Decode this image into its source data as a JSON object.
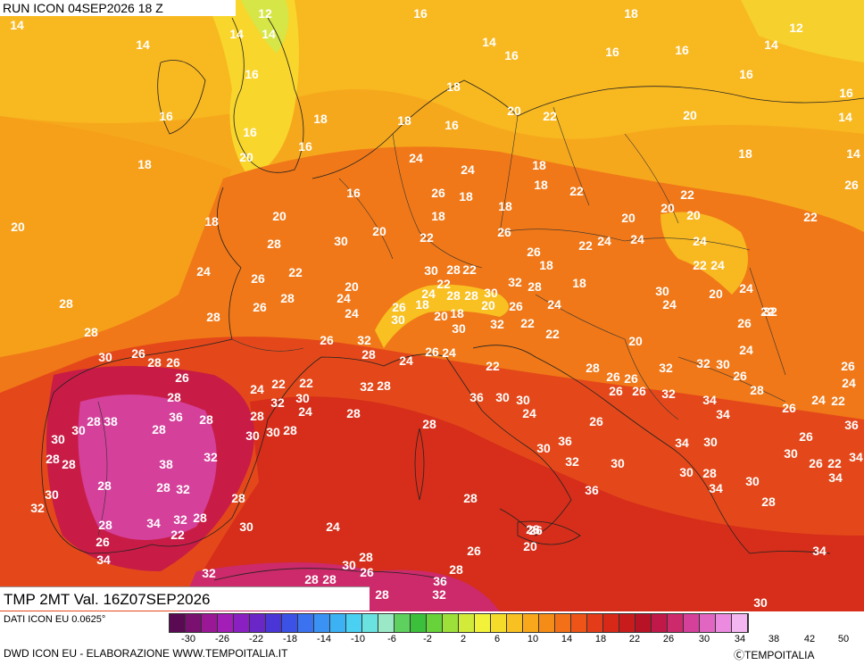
{
  "header": {
    "run": "RUN ICON 04SEP2026 18 Z"
  },
  "validity": {
    "label": "TMP 2MT Val. 16Z07SEP2026"
  },
  "footer": {
    "source": "DATI ICON EU 0.0625°",
    "credit": "DWD ICON EU - ELABORAZIONE WWW.TEMPOITALIA.IT",
    "copyright": "ⒸTEMPOITALIA"
  },
  "scale": {
    "ticks": [
      "-30",
      "-26",
      "-22",
      "-18",
      "-14",
      "-10",
      "-6",
      "-2",
      "2",
      "6",
      "10",
      "14",
      "18",
      "22",
      "26",
      "30",
      "34",
      "38",
      "42",
      "50"
    ],
    "colors": [
      "#5a0a52",
      "#7a1070",
      "#9a1896",
      "#a21eb6",
      "#8a20c2",
      "#6a26c6",
      "#4a36d6",
      "#3c52e6",
      "#3a72f0",
      "#3a92f4",
      "#3cb2f4",
      "#4ad0f2",
      "#6ae2e0",
      "#9ae8c6",
      "#5ed05e",
      "#3cc03c",
      "#68d23a",
      "#9ee03a",
      "#d2ea3a",
      "#f2f23a",
      "#f6dc2a",
      "#f8c020",
      "#f8a81a",
      "#f68c18",
      "#f47018",
      "#ee5418",
      "#e43c18",
      "#d82818",
      "#c81c1c",
      "#b81226",
      "#c01848",
      "#cc2a6a",
      "#d4409a",
      "#e066c2",
      "#ec8ae0",
      "#f4b6f0"
    ]
  },
  "map_labels": [
    "12",
    "16",
    "18",
    "14",
    "14",
    "14",
    "14",
    "16",
    "16",
    "16",
    "12",
    "14",
    "16",
    "16",
    "16",
    "14",
    "16",
    "14",
    "16",
    "18",
    "20",
    "22",
    "20",
    "18",
    "18",
    "16",
    "16",
    "18",
    "20",
    "18",
    "18",
    "18",
    "14",
    "24",
    "24",
    "26",
    "20",
    "18",
    "20",
    "16",
    "18",
    "18",
    "22",
    "22",
    "26",
    "22",
    "20",
    "20",
    "20",
    "18",
    "20",
    "28",
    "30",
    "22",
    "26",
    "22",
    "24",
    "24",
    "26",
    "24",
    "24",
    "26",
    "22",
    "20",
    "30",
    "28",
    "22",
    "22",
    "18",
    "18",
    "22",
    "24",
    "22",
    "24",
    "28",
    "26",
    "28",
    "24",
    "26",
    "24",
    "28",
    "28",
    "30",
    "32",
    "28",
    "30",
    "20",
    "24",
    "18",
    "20",
    "18",
    "20",
    "26",
    "24",
    "24",
    "26",
    "32",
    "28",
    "28",
    "30",
    "30",
    "32",
    "22",
    "22",
    "20",
    "32",
    "26",
    "28",
    "24",
    "30",
    "26",
    "28",
    "26",
    "26",
    "24",
    "22",
    "22",
    "32",
    "28",
    "24",
    "26",
    "24",
    "22",
    "28",
    "26",
    "26",
    "26",
    "26",
    "32",
    "32",
    "30",
    "26",
    "28",
    "26",
    "24",
    "28",
    "32",
    "30",
    "28",
    "36",
    "30",
    "30",
    "24",
    "26",
    "32",
    "34",
    "34",
    "26",
    "24",
    "22",
    "36",
    "36",
    "28",
    "28",
    "30",
    "28",
    "24",
    "28",
    "38",
    "30",
    "30",
    "28",
    "30",
    "28",
    "36",
    "34",
    "30",
    "26",
    "30",
    "28",
    "28",
    "38",
    "32",
    "30",
    "32",
    "30",
    "30",
    "28",
    "26",
    "22",
    "34",
    "34",
    "28",
    "28",
    "32",
    "28",
    "36",
    "34",
    "30",
    "28",
    "30",
    "32",
    "28",
    "34",
    "32",
    "28",
    "30",
    "24",
    "28",
    "26",
    "26",
    "22",
    "20",
    "28",
    "26",
    "34",
    "32",
    "30",
    "26",
    "28",
    "28",
    "28",
    "28",
    "34",
    "36",
    "32",
    "28",
    "30",
    "26",
    "26",
    "24",
    "28",
    "26",
    "28",
    "26",
    "24",
    "26",
    "28",
    "26",
    "30",
    "28",
    "28",
    "32",
    "22",
    "22"
  ]
}
